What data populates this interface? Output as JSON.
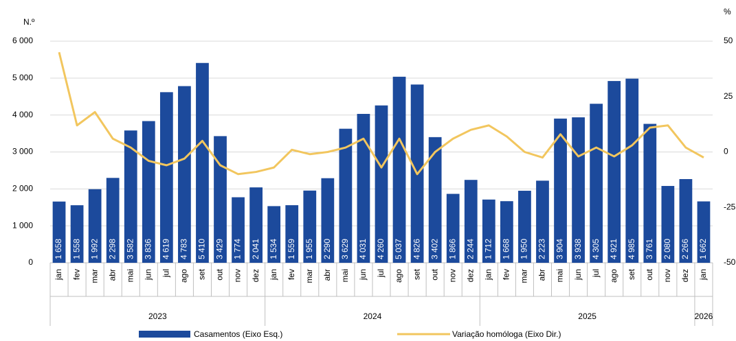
{
  "chart_data": {
    "type": "bar",
    "y_label": "N.º",
    "y2_label": "%",
    "categories": [
      "jan",
      "fev",
      "mar",
      "abr",
      "mai",
      "jun",
      "jul",
      "ago",
      "set",
      "out",
      "nov",
      "dez",
      "jan",
      "fev",
      "mar",
      "abr",
      "mai",
      "jun",
      "jul",
      "ago",
      "set",
      "out",
      "nov",
      "dez",
      "jan",
      "fev",
      "mar",
      "abr",
      "mai",
      "jun",
      "jul",
      "ago",
      "set",
      "out",
      "nov",
      "dez",
      "jan"
    ],
    "years": [
      "2023",
      "2024",
      "2025",
      "2026"
    ],
    "ylim": [
      0,
      6000
    ],
    "yticks": [
      0,
      {
        "value": 1000,
        "label": "1 000"
      },
      {
        "value": 2000,
        "label": "2 000"
      },
      {
        "value": 3000,
        "label": "3 000"
      },
      {
        "value": 4000,
        "label": "4 000"
      },
      {
        "value": 5000,
        "label": "5 000"
      },
      {
        "value": 6000,
        "label": "6 000"
      }
    ],
    "y2lim": [
      -50,
      50
    ],
    "y2ticks": [
      -50,
      -25,
      0,
      25,
      50
    ],
    "grid": true,
    "series": [
      {
        "name": "Casamentos (Eixo Esq.)",
        "type": "bar",
        "color": "#1c4a9c",
        "values": [
          1658,
          1558,
          1992,
          2298,
          3582,
          3836,
          4619,
          4783,
          5410,
          3429,
          1774,
          2041,
          1534,
          1559,
          1955,
          2290,
          3629,
          4031,
          4260,
          5037,
          4826,
          3402,
          1866,
          2244,
          1712,
          1668,
          1950,
          2223,
          3904,
          3938,
          4305,
          4921,
          4985,
          3761,
          2080,
          2266,
          1662
        ],
        "value_labels": [
          "1 658",
          "1 558",
          "1 992",
          "2 298",
          "3 582",
          "3 836",
          "4 619",
          "4 783",
          "5 410",
          "3 429",
          "1 774",
          "2 041",
          "1 534",
          "1 559",
          "1 955",
          "2 290",
          "3 629",
          "4 031",
          "4 260",
          "5 037",
          "4 826",
          "3 402",
          "1 866",
          "2 244",
          "1 712",
          "1 668",
          "1 950",
          "2 223",
          "3 904",
          "3 938",
          "4 305",
          "4 921",
          "4 985",
          "3 761",
          "2 080",
          "2 266",
          "1 662"
        ]
      },
      {
        "name": "Variação homóloga (Eixo Dir.)",
        "type": "line",
        "color": "#f2c65e",
        "axis": "y2",
        "values": [
          45,
          12,
          18,
          6,
          2,
          -4,
          -6,
          -3,
          5,
          -6,
          -10,
          -9,
          -7,
          1,
          -1,
          0,
          2,
          6,
          -7,
          6,
          -10,
          0,
          6,
          10,
          12,
          7,
          0,
          -2.5,
          8,
          -2,
          2,
          -2,
          3,
          11,
          12,
          2,
          -2.5
        ]
      }
    ]
  }
}
